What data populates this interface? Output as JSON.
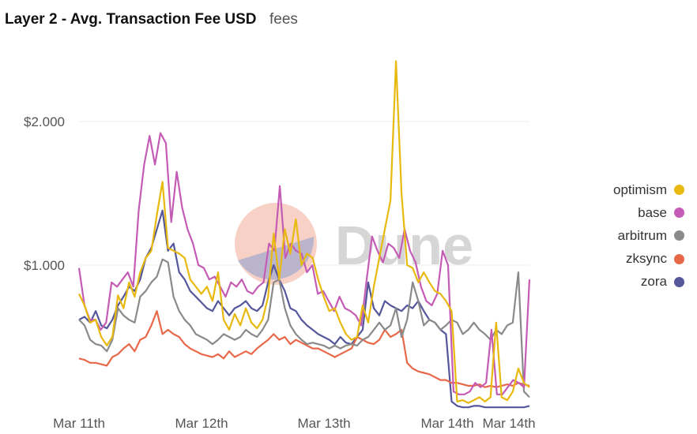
{
  "chart_data": {
    "type": "line",
    "title": "Layer 2 - Avg. Transaction Fee USD",
    "subtitle": "fees",
    "watermark": "Dune",
    "xlabel": "",
    "ylabel": "",
    "x_ticks": [
      "Mar 11th",
      "Mar 12th",
      "Mar 13th",
      "Mar 14th",
      "Mar 14th"
    ],
    "y_ticks": [
      {
        "label": "$2.000",
        "value": 2000
      },
      {
        "label": "$1.000",
        "value": 1000
      }
    ],
    "ylim": [
      0,
      2450
    ],
    "grid": true,
    "legend_position": "right",
    "series": [
      {
        "name": "optimism",
        "color": "#e8b90f",
        "values": [
          0.8,
          0.72,
          0.6,
          0.62,
          0.5,
          0.44,
          0.5,
          0.79,
          0.7,
          0.88,
          0.78,
          0.95,
          1.05,
          1.1,
          1.35,
          1.58,
          1.12,
          1.1,
          1.08,
          1.05,
          0.9,
          0.85,
          0.8,
          0.85,
          0.75,
          0.95,
          0.62,
          0.55,
          0.66,
          0.58,
          0.7,
          0.6,
          0.56,
          0.62,
          0.78,
          1.22,
          0.9,
          1.25,
          1.08,
          1.32,
          1.0,
          1.08,
          1.05,
          0.9,
          0.78,
          0.68,
          0.7,
          0.6,
          0.52,
          0.48,
          0.5,
          0.72,
          0.6,
          0.85,
          1.05,
          1.25,
          1.45,
          2.42,
          1.5,
          1.0,
          0.98,
          0.88,
          0.95,
          0.88,
          0.82,
          0.8,
          0.75,
          0.68,
          0.05,
          0.06,
          0.04,
          0.06,
          0.08,
          0.05,
          0.08,
          0.6,
          0.08,
          0.06,
          0.12,
          0.28,
          0.18,
          0.15
        ]
      },
      {
        "name": "base",
        "color": "#c45cb5",
        "values": [
          0.98,
          0.72,
          0.62,
          0.62,
          0.55,
          0.6,
          0.88,
          0.85,
          0.9,
          0.95,
          0.85,
          1.38,
          1.7,
          1.9,
          1.7,
          1.92,
          1.85,
          1.3,
          1.65,
          1.4,
          1.25,
          1.15,
          1.0,
          0.98,
          0.9,
          0.92,
          0.85,
          0.78,
          0.88,
          0.85,
          0.9,
          0.82,
          0.8,
          0.85,
          0.88,
          1.15,
          1.1,
          1.55,
          1.05,
          1.15,
          1.1,
          1.08,
          0.95,
          1.0,
          0.8,
          0.82,
          0.75,
          0.68,
          0.78,
          0.7,
          0.68,
          0.65,
          0.58,
          0.9,
          1.2,
          1.1,
          1.02,
          1.15,
          1.12,
          1.05,
          1.25,
          1.1,
          1.02,
          0.85,
          0.75,
          0.72,
          0.8,
          1.1,
          1.0,
          0.12,
          0.1,
          0.1,
          0.12,
          0.18,
          0.15,
          0.18,
          0.55,
          0.1,
          0.1,
          0.15,
          0.2,
          0.18,
          0.15,
          0.9
        ]
      },
      {
        "name": "arbitrum",
        "color": "#8a8a8a",
        "values": [
          0.62,
          0.58,
          0.48,
          0.45,
          0.44,
          0.4,
          0.48,
          0.7,
          0.65,
          0.62,
          0.6,
          0.78,
          0.82,
          0.88,
          0.92,
          1.04,
          1.02,
          0.78,
          0.68,
          0.62,
          0.58,
          0.52,
          0.5,
          0.48,
          0.45,
          0.48,
          0.52,
          0.5,
          0.48,
          0.5,
          0.55,
          0.52,
          0.5,
          0.55,
          0.62,
          0.88,
          0.9,
          0.7,
          0.58,
          0.52,
          0.48,
          0.45,
          0.46,
          0.45,
          0.44,
          0.42,
          0.44,
          0.42,
          0.44,
          0.45,
          0.44,
          0.48,
          0.5,
          0.55,
          0.6,
          0.55,
          0.58,
          0.7,
          0.5,
          0.62,
          0.88,
          0.75,
          0.58,
          0.62,
          0.6,
          0.55,
          0.58,
          0.62,
          0.6,
          0.52,
          0.55,
          0.6,
          0.55,
          0.52,
          0.48,
          0.55,
          0.52,
          0.58,
          0.6,
          0.95,
          0.12,
          0.08
        ]
      },
      {
        "name": "zksync",
        "color": "#e8684a",
        "values": [
          0.35,
          0.34,
          0.32,
          0.32,
          0.31,
          0.3,
          0.36,
          0.38,
          0.42,
          0.45,
          0.4,
          0.48,
          0.5,
          0.58,
          0.68,
          0.52,
          0.55,
          0.52,
          0.5,
          0.45,
          0.42,
          0.4,
          0.38,
          0.37,
          0.36,
          0.38,
          0.35,
          0.4,
          0.36,
          0.38,
          0.4,
          0.38,
          0.42,
          0.45,
          0.48,
          0.52,
          0.48,
          0.5,
          0.45,
          0.48,
          0.46,
          0.44,
          0.42,
          0.42,
          0.4,
          0.38,
          0.36,
          0.38,
          0.4,
          0.42,
          0.5,
          0.48,
          0.46,
          0.45,
          0.48,
          0.55,
          0.5,
          0.52,
          0.55,
          0.32,
          0.28,
          0.26,
          0.25,
          0.24,
          0.22,
          0.2,
          0.2,
          0.18,
          0.18,
          0.17,
          0.16,
          0.16,
          0.17,
          0.15,
          0.16,
          0.15,
          0.16,
          0.17,
          0.16,
          0.18,
          0.17,
          0.16
        ]
      },
      {
        "name": "zora",
        "color": "#55579b",
        "values": [
          0.62,
          0.64,
          0.6,
          0.68,
          0.58,
          0.56,
          0.62,
          0.72,
          0.78,
          0.85,
          0.82,
          0.9,
          1.05,
          1.12,
          1.25,
          1.38,
          1.1,
          1.15,
          0.95,
          0.9,
          0.82,
          0.78,
          0.74,
          0.7,
          0.68,
          0.75,
          0.7,
          0.65,
          0.7,
          0.72,
          0.75,
          0.7,
          0.68,
          0.72,
          0.88,
          1.0,
          0.9,
          0.82,
          0.7,
          0.68,
          0.62,
          0.58,
          0.55,
          0.52,
          0.5,
          0.48,
          0.45,
          0.5,
          0.46,
          0.45,
          0.5,
          0.55,
          0.88,
          0.7,
          0.65,
          0.75,
          0.72,
          0.7,
          0.68,
          0.72,
          0.7,
          0.75,
          0.68,
          0.62,
          0.6,
          0.55,
          0.52,
          0.05,
          0.02,
          0.01,
          0.01,
          0.02,
          0.02,
          0.01,
          0.01,
          0.01,
          0.01,
          0.01,
          0.01,
          0.01,
          0.01,
          0.02
        ]
      }
    ]
  }
}
